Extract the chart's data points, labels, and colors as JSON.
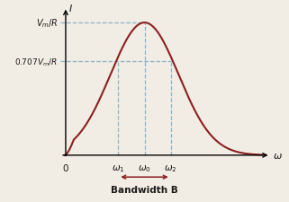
{
  "background_color": "#f2ede4",
  "curve_color": "#8b2020",
  "dashed_color": "#8ab4cc",
  "arrow_color": "#8b2020",
  "text_color": "#1a1a1a",
  "figsize": [
    3.21,
    2.26
  ],
  "dpi": 100,
  "label_vm_r": "$V_m/R$",
  "label_0707": "$0.707V_m/R$",
  "label_omega1": "$\\omega_1$",
  "label_omega0": "$\\omega_0$",
  "label_omega2": "$\\omega_2$",
  "label_zero": "0",
  "label_omega_axis": "$\\omega$",
  "label_I": "$I$",
  "label_bandwidth": "Bandwidth B"
}
